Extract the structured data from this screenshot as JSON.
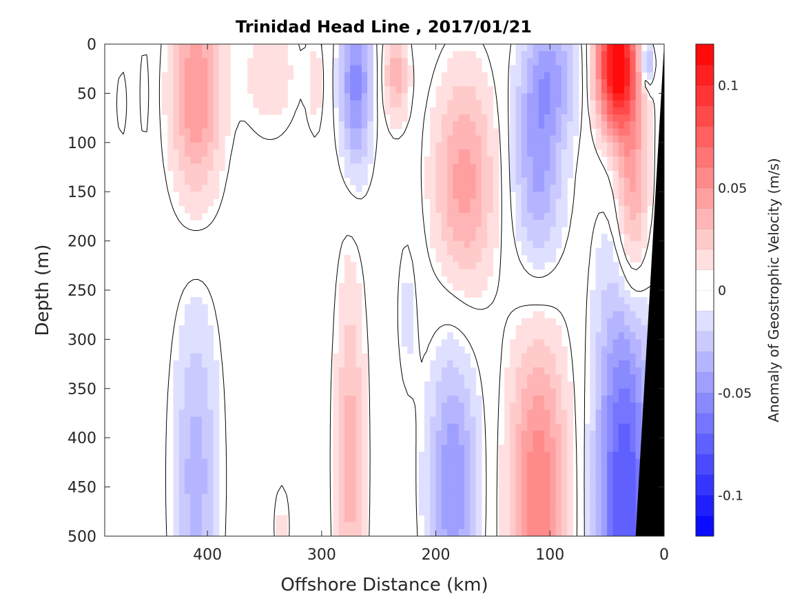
{
  "chart_data": {
    "type": "heatmap",
    "title": "Trinidad Head Line , 2017/01/21",
    "xlabel": "Offshore Distance (km)",
    "ylabel": "Depth (m)",
    "xlim": [
      490,
      0
    ],
    "ylim": [
      0,
      500
    ],
    "xticks": [
      400,
      300,
      200,
      100,
      0
    ],
    "yticks": [
      0,
      50,
      100,
      150,
      200,
      250,
      300,
      350,
      400,
      450,
      500
    ],
    "colorbar": {
      "label": "Anomaly of Geostrophic Velocity (m/s)",
      "range": [
        -0.12,
        0.12
      ],
      "levels": 24,
      "ticks": [
        "0.1",
        "0.05",
        "0",
        "-0.05",
        "-0.1"
      ],
      "tick_values": [
        0.1,
        0.05,
        0,
        -0.05,
        -0.1
      ],
      "positive_color": "#ff0000",
      "negative_color": "#0000ff"
    },
    "depth_levels_m": [
      0,
      50,
      100,
      150,
      200,
      250,
      300,
      350,
      400,
      450,
      500
    ],
    "features": [
      {
        "x_km": 410,
        "center_depth_m": 50,
        "velocity": 0.05,
        "x_halfwidth_km": 22,
        "depth_halfwidth_m": 110
      },
      {
        "x_km": 345,
        "center_depth_m": 30,
        "velocity": 0.015,
        "x_halfwidth_km": 28,
        "depth_halfwidth_m": 70
      },
      {
        "x_km": 305,
        "center_depth_m": 40,
        "velocity": 0.012,
        "x_halfwidth_km": 8,
        "depth_halfwidth_m": 60
      },
      {
        "x_km": 270,
        "center_depth_m": 40,
        "velocity": -0.055,
        "x_halfwidth_km": 14,
        "depth_halfwidth_m": 90
      },
      {
        "x_km": 235,
        "center_depth_m": 30,
        "velocity": 0.035,
        "x_halfwidth_km": 11,
        "depth_halfwidth_m": 50
      },
      {
        "x_km": 175,
        "center_depth_m": 140,
        "velocity": 0.045,
        "x_halfwidth_km": 27,
        "depth_halfwidth_m": 110
      },
      {
        "x_km": 110,
        "center_depth_m": 120,
        "velocity": -0.045,
        "x_halfwidth_km": 22,
        "depth_halfwidth_m": 120
      },
      {
        "x_km": 95,
        "center_depth_m": 30,
        "velocity": -0.03,
        "x_halfwidth_km": 25,
        "depth_halfwidth_m": 60
      },
      {
        "x_km": 42,
        "center_depth_m": 20,
        "velocity": 0.12,
        "x_halfwidth_km": 18,
        "depth_halfwidth_m": 70
      },
      {
        "x_km": 28,
        "center_depth_m": 150,
        "velocity": 0.05,
        "x_halfwidth_km": 15,
        "depth_halfwidth_m": 120
      },
      {
        "x_km": 15,
        "center_depth_m": 20,
        "velocity": -0.05,
        "x_halfwidth_km": 6,
        "depth_halfwidth_m": 25
      },
      {
        "x_km": 410,
        "center_depth_m": 440,
        "velocity": -0.035,
        "x_halfwidth_km": 20,
        "depth_halfwidth_m": 170
      },
      {
        "x_km": 275,
        "center_depth_m": 420,
        "velocity": 0.035,
        "x_halfwidth_km": 13,
        "depth_halfwidth_m": 190
      },
      {
        "x_km": 225,
        "center_depth_m": 270,
        "velocity": -0.012,
        "x_halfwidth_km": 10,
        "depth_halfwidth_m": 90
      },
      {
        "x_km": 185,
        "center_depth_m": 450,
        "velocity": -0.05,
        "x_halfwidth_km": 22,
        "depth_halfwidth_m": 140
      },
      {
        "x_km": 110,
        "center_depth_m": 470,
        "velocity": 0.06,
        "x_halfwidth_km": 26,
        "depth_halfwidth_m": 180
      },
      {
        "x_km": 35,
        "center_depth_m": 460,
        "velocity": -0.08,
        "x_halfwidth_km": 25,
        "depth_halfwidth_m": 230
      },
      {
        "x_km": 335,
        "center_depth_m": 490,
        "velocity": 0.012,
        "x_halfwidth_km": 8,
        "depth_halfwidth_m": 50
      },
      {
        "x_km": 475,
        "center_depth_m": 60,
        "velocity": 0.012,
        "x_halfwidth_km": 5,
        "depth_halfwidth_m": 40
      },
      {
        "x_km": 455,
        "center_depth_m": 50,
        "velocity": -0.012,
        "x_halfwidth_km": 5,
        "depth_halfwidth_m": 60
      }
    ],
    "bathymetry": {
      "color": "#000000",
      "points": [
        [
          0,
          0
        ],
        [
          0,
          500
        ],
        [
          25,
          500
        ],
        [
          0,
          0
        ]
      ]
    }
  }
}
